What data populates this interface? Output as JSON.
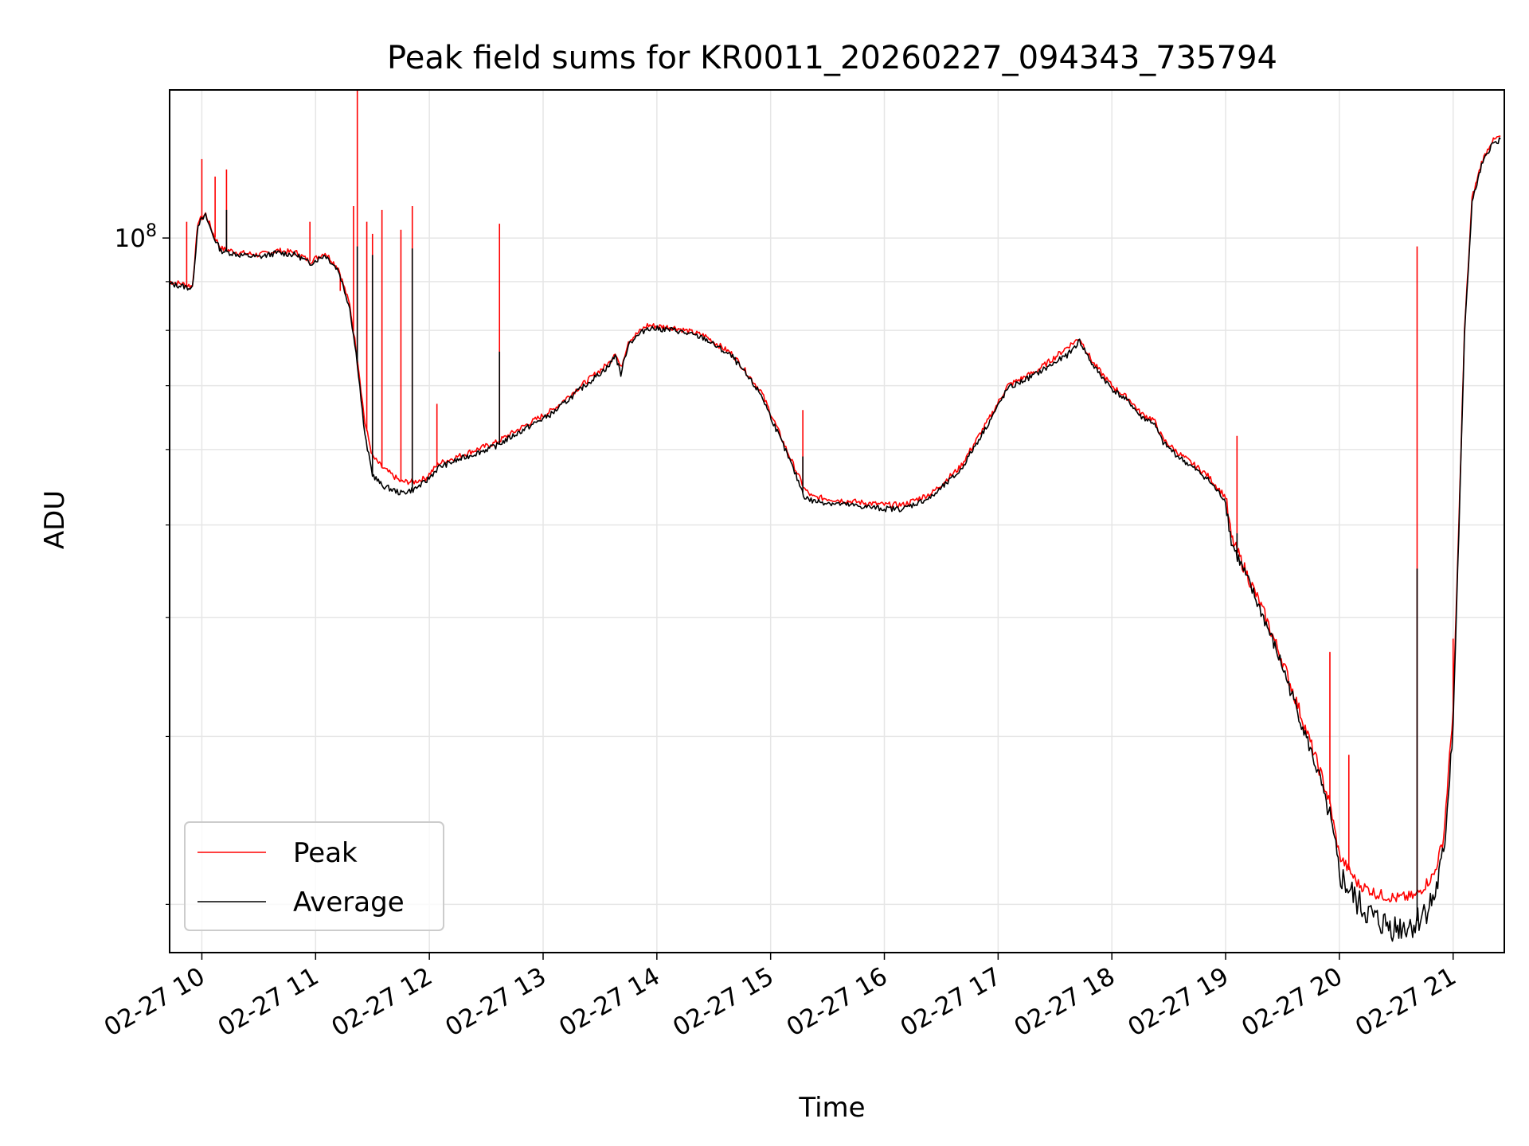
{
  "chart_data": {
    "type": "line",
    "title": "Peak field sums for KR0011_20260227_094343_735794",
    "xlabel": "Time",
    "ylabel": "ADU",
    "x_ticks": [
      "02-27 10",
      "02-27 11",
      "02-27 12",
      "02-27 13",
      "02-27 14",
      "02-27 15",
      "02-27 16",
      "02-27 17",
      "02-27 18",
      "02-27 19",
      "02-27 20",
      "02-27 21"
    ],
    "xlim": [
      "2026-02-27 09:43",
      "2026-02-27 21:00"
    ],
    "y_scale": "log",
    "ylim": [
      17800000,
      143000000
    ],
    "y_tick_label": "10^8",
    "grid": true,
    "legend": {
      "position": "lower-left",
      "entries": [
        "Peak",
        "Average"
      ]
    },
    "series": [
      {
        "name": "Peak",
        "color": "#ff0000",
        "points": [
          [
            "09:43",
            90000000
          ],
          [
            "09:50",
            89500000
          ],
          [
            "09:55",
            89000000
          ],
          [
            "09:58",
            104000000
          ],
          [
            "10:02",
            106000000
          ],
          [
            "10:06",
            101000000
          ],
          [
            "10:10",
            97500000
          ],
          [
            "10:20",
            96500000
          ],
          [
            "10:30",
            96000000
          ],
          [
            "10:40",
            97000000
          ],
          [
            "10:50",
            96500000
          ],
          [
            "10:57",
            94500000
          ],
          [
            "11:05",
            96500000
          ],
          [
            "11:12",
            93000000
          ],
          [
            "11:18",
            85000000
          ],
          [
            "11:22",
            75000000
          ],
          [
            "11:26",
            64000000
          ],
          [
            "11:30",
            59000000
          ],
          [
            "11:35",
            57500000
          ],
          [
            "11:45",
            55500000
          ],
          [
            "11:52",
            55500000
          ],
          [
            "11:58",
            56000000
          ],
          [
            "12:05",
            58000000
          ],
          [
            "12:20",
            59500000
          ],
          [
            "12:35",
            61000000
          ],
          [
            "12:50",
            63500000
          ],
          [
            "13:05",
            66000000
          ],
          [
            "13:20",
            70000000
          ],
          [
            "13:35",
            74000000
          ],
          [
            "13:38",
            76000000
          ],
          [
            "13:41",
            73000000
          ],
          [
            "13:45",
            78000000
          ],
          [
            "13:55",
            81000000
          ],
          [
            "14:10",
            80500000
          ],
          [
            "14:25",
            79000000
          ],
          [
            "14:40",
            75500000
          ],
          [
            "14:55",
            69000000
          ],
          [
            "15:10",
            59000000
          ],
          [
            "15:18",
            54500000
          ],
          [
            "15:22",
            53500000
          ],
          [
            "15:40",
            53000000
          ],
          [
            "16:00",
            52500000
          ],
          [
            "16:10",
            52500000
          ],
          [
            "16:25",
            54000000
          ],
          [
            "16:40",
            57500000
          ],
          [
            "16:55",
            64500000
          ],
          [
            "17:05",
            70000000
          ],
          [
            "17:20",
            72500000
          ],
          [
            "17:30",
            75000000
          ],
          [
            "17:37",
            77000000
          ],
          [
            "17:43",
            78500000
          ],
          [
            "17:50",
            74000000
          ],
          [
            "18:00",
            70000000
          ],
          [
            "18:10",
            67500000
          ],
          [
            "18:15",
            65500000
          ],
          [
            "18:22",
            64500000
          ],
          [
            "18:27",
            61500000
          ],
          [
            "18:35",
            59500000
          ],
          [
            "18:50",
            56500000
          ],
          [
            "19:00",
            53500000
          ],
          [
            "19:03",
            48500000
          ],
          [
            "19:10",
            45000000
          ],
          [
            "19:20",
            40500000
          ],
          [
            "19:30",
            36000000
          ],
          [
            "19:40",
            31500000
          ],
          [
            "19:50",
            27500000
          ],
          [
            "19:55",
            25500000
          ],
          [
            "20:00",
            22500000
          ],
          [
            "20:10",
            21000000
          ],
          [
            "20:20",
            20500000
          ],
          [
            "20:30",
            20300000
          ],
          [
            "20:40",
            20400000
          ],
          [
            "20:50",
            21500000
          ],
          [
            "20:55",
            23500000
          ],
          [
            "21:00",
            32000000
          ],
          [
            "21:03",
            50000000
          ],
          [
            "21:06",
            80000000
          ],
          [
            "21:10",
            110000000
          ],
          [
            "21:15",
            120000000
          ],
          [
            "21:20",
            126000000
          ],
          [
            "21:25",
            128000000
          ]
        ],
        "spikes": [
          [
            "09:52",
            104000000
          ],
          [
            "10:00",
            121000000
          ],
          [
            "10:07",
            116000000
          ],
          [
            "10:13",
            118000000
          ],
          [
            "10:57",
            104000000
          ],
          [
            "11:13",
            88000000
          ],
          [
            "11:20",
            108000000
          ],
          [
            "11:22",
            146000000
          ],
          [
            "11:27",
            104000000
          ],
          [
            "11:30",
            101000000
          ],
          [
            "11:35",
            107000000
          ],
          [
            "11:45",
            102000000
          ],
          [
            "11:51",
            108000000
          ],
          [
            "12:04",
            67000000
          ],
          [
            "12:37",
            103500000
          ],
          [
            "15:17",
            66000000
          ],
          [
            "19:06",
            62000000
          ],
          [
            "19:55",
            36800000
          ],
          [
            "20:05",
            28700000
          ],
          [
            "20:41",
            98000000
          ],
          [
            "21:00",
            38000000
          ]
        ]
      },
      {
        "name": "Average",
        "color": "#000000",
        "points": [
          [
            "09:43",
            89500000
          ],
          [
            "09:50",
            89000000
          ],
          [
            "09:55",
            88500000
          ],
          [
            "09:58",
            103500000
          ],
          [
            "10:02",
            105500000
          ],
          [
            "10:06",
            100500000
          ],
          [
            "10:10",
            97000000
          ],
          [
            "10:20",
            96000000
          ],
          [
            "10:30",
            95500000
          ],
          [
            "10:40",
            96500000
          ],
          [
            "10:50",
            96000000
          ],
          [
            "10:57",
            94000000
          ],
          [
            "11:05",
            96000000
          ],
          [
            "11:12",
            92500000
          ],
          [
            "11:18",
            84500000
          ],
          [
            "11:22",
            74000000
          ],
          [
            "11:26",
            62000000
          ],
          [
            "11:30",
            56500000
          ],
          [
            "11:35",
            55000000
          ],
          [
            "11:45",
            54000000
          ],
          [
            "11:52",
            54500000
          ],
          [
            "11:58",
            55500000
          ],
          [
            "12:05",
            57500000
          ],
          [
            "12:20",
            59000000
          ],
          [
            "12:35",
            60500000
          ],
          [
            "12:50",
            63000000
          ],
          [
            "13:05",
            65500000
          ],
          [
            "13:20",
            69500000
          ],
          [
            "13:35",
            73500000
          ],
          [
            "13:38",
            75500000
          ],
          [
            "13:41",
            72000000
          ],
          [
            "13:45",
            77500000
          ],
          [
            "13:55",
            80500000
          ],
          [
            "14:10",
            80000000
          ],
          [
            "14:25",
            78500000
          ],
          [
            "14:40",
            75000000
          ],
          [
            "14:55",
            68500000
          ],
          [
            "15:10",
            58500000
          ],
          [
            "15:18",
            53500000
          ],
          [
            "15:22",
            53000000
          ],
          [
            "15:40",
            52500000
          ],
          [
            "16:00",
            52000000
          ],
          [
            "16:10",
            52000000
          ],
          [
            "16:25",
            53500000
          ],
          [
            "16:40",
            57000000
          ],
          [
            "16:55",
            64000000
          ],
          [
            "17:05",
            69500000
          ],
          [
            "17:20",
            72000000
          ],
          [
            "17:30",
            74000000
          ],
          [
            "17:37",
            75500000
          ],
          [
            "17:43",
            78000000
          ],
          [
            "17:50",
            73500000
          ],
          [
            "18:00",
            69500000
          ],
          [
            "18:10",
            67000000
          ],
          [
            "18:15",
            65000000
          ],
          [
            "18:22",
            64000000
          ],
          [
            "18:27",
            61000000
          ],
          [
            "18:35",
            59000000
          ],
          [
            "18:50",
            56000000
          ],
          [
            "19:00",
            53000000
          ],
          [
            "19:03",
            48000000
          ],
          [
            "19:10",
            44500000
          ],
          [
            "19:20",
            40000000
          ],
          [
            "19:30",
            35500000
          ],
          [
            "19:40",
            31000000
          ],
          [
            "19:50",
            27000000
          ],
          [
            "19:55",
            24500000
          ],
          [
            "20:00",
            21500000
          ],
          [
            "20:10",
            20000000
          ],
          [
            "20:20",
            19200000
          ],
          [
            "20:30",
            18900000
          ],
          [
            "20:40",
            19100000
          ],
          [
            "20:50",
            20300000
          ],
          [
            "20:55",
            22500000
          ],
          [
            "21:00",
            31000000
          ],
          [
            "21:03",
            49000000
          ],
          [
            "21:06",
            79000000
          ],
          [
            "21:10",
            109000000
          ],
          [
            "21:15",
            119000000
          ],
          [
            "21:20",
            125000000
          ],
          [
            "21:25",
            127000000
          ]
        ],
        "spikes": [
          [
            "10:13",
            107000000
          ],
          [
            "11:22",
            98000000
          ],
          [
            "11:30",
            96000000
          ],
          [
            "11:51",
            97500000
          ],
          [
            "12:37",
            76000000
          ],
          [
            "15:17",
            59000000
          ],
          [
            "19:06",
            49000000
          ],
          [
            "20:41",
            45000000
          ]
        ]
      }
    ]
  }
}
